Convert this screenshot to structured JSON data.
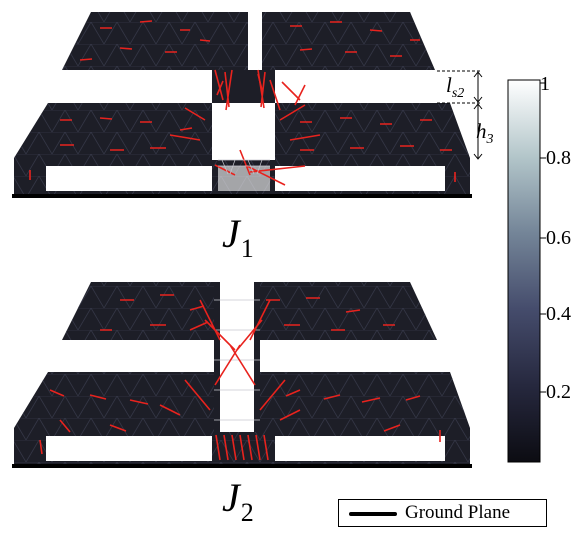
{
  "top_panel": {
    "label": "J",
    "label_sub": "1"
  },
  "bottom_panel": {
    "label": "J",
    "label_sub": "2"
  },
  "dimensions": [
    {
      "symbol": "l",
      "sub": "s2"
    },
    {
      "symbol": "h",
      "sub": "3"
    }
  ],
  "colorbar": {
    "min": 0,
    "max": 1,
    "ticks": [
      "1",
      "0.8",
      "0.6",
      "0.4",
      "0.2"
    ],
    "colors": [
      "#101018",
      "#2a2c44",
      "#4c5474",
      "#7e8fa3",
      "#b7c8ce",
      "#ffffff"
    ]
  },
  "legend": {
    "label": "Ground Plane"
  },
  "colors": {
    "patch": "#1d1e27",
    "arrow": "#e8231e",
    "edge": "#3a3d4c",
    "feed": "#ffffff"
  }
}
